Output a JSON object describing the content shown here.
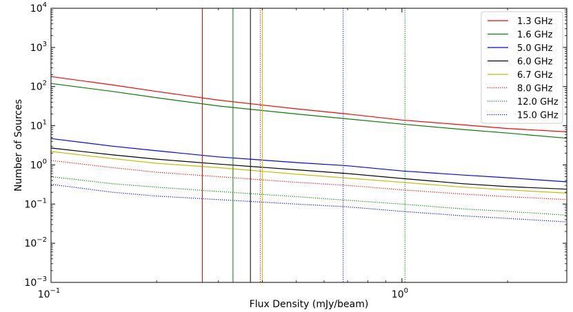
{
  "chart_data": {
    "type": "line",
    "title": "",
    "xlabel": "Flux Density (mJy/beam)",
    "ylabel": "Number of Sources",
    "xscale": "log",
    "yscale": "log",
    "xlim": [
      0.1,
      2.95
    ],
    "ylim": [
      0.001,
      10000
    ],
    "grid": false,
    "legend_position": "top-right",
    "x_ticks": [
      {
        "value": 0.1,
        "base": "10",
        "exp": "−1"
      },
      {
        "value": 1,
        "base": "10",
        "exp": "0"
      }
    ],
    "y_ticks": [
      {
        "value": 0.001,
        "base": "10",
        "exp": "−3"
      },
      {
        "value": 0.01,
        "base": "10",
        "exp": "−2"
      },
      {
        "value": 0.1,
        "base": "10",
        "exp": "−1"
      },
      {
        "value": 1,
        "base": "10",
        "exp": "0"
      },
      {
        "value": 10,
        "base": "10",
        "exp": "1"
      },
      {
        "value": 100,
        "base": "10",
        "exp": "2"
      },
      {
        "value": 1000,
        "base": "10",
        "exp": "3"
      },
      {
        "value": 10000,
        "base": "10",
        "exp": "4"
      }
    ],
    "series": [
      {
        "name": "1.3 GHz",
        "color": "#ff0000",
        "style": "solid",
        "threshold_x": 0.27,
        "x": [
          0.1,
          0.15,
          0.2,
          0.3,
          0.5,
          0.7,
          1.0,
          1.5,
          2.0,
          2.95
        ],
        "y": [
          180,
          110,
          75,
          45,
          27,
          20,
          14,
          10.5,
          8.5,
          7
        ]
      },
      {
        "name": "1.6 GHz",
        "color": "#008000",
        "style": "solid",
        "threshold_x": 0.33,
        "x": [
          0.1,
          0.15,
          0.2,
          0.3,
          0.5,
          0.7,
          1.0,
          1.5,
          2.0,
          2.95
        ],
        "y": [
          120,
          75,
          52,
          32,
          20,
          15,
          11,
          8,
          6.5,
          4.8
        ]
      },
      {
        "name": "5.0 GHz",
        "color": "#0000ff",
        "style": "solid",
        "threshold_x": null,
        "x": [
          0.1,
          0.15,
          0.2,
          0.3,
          0.5,
          0.7,
          1.0,
          1.5,
          2.0,
          2.95
        ],
        "y": [
          4.7,
          3.0,
          2.3,
          1.6,
          1.15,
          0.95,
          0.7,
          0.55,
          0.47,
          0.37
        ]
      },
      {
        "name": "6.0 GHz",
        "color": "#000000",
        "style": "solid",
        "threshold_x": 0.37,
        "x": [
          0.1,
          0.15,
          0.2,
          0.3,
          0.5,
          0.7,
          1.0,
          1.5,
          2.0,
          2.95
        ],
        "y": [
          2.7,
          1.8,
          1.4,
          1.05,
          0.75,
          0.6,
          0.45,
          0.33,
          0.28,
          0.24
        ]
      },
      {
        "name": "6.7 GHz",
        "color": "#bfbf00",
        "style": "solid",
        "threshold_x": 0.4,
        "x": [
          0.1,
          0.15,
          0.2,
          0.3,
          0.5,
          0.7,
          1.0,
          1.5,
          2.0,
          2.95
        ],
        "y": [
          2.2,
          1.45,
          1.1,
          0.85,
          0.58,
          0.46,
          0.36,
          0.27,
          0.23,
          0.19
        ]
      },
      {
        "name": "8.0 GHz",
        "color": "#ff0000",
        "style": "dotted",
        "threshold_x": 0.395,
        "x": [
          0.1,
          0.15,
          0.2,
          0.3,
          0.5,
          0.7,
          1.0,
          1.5,
          2.0,
          2.95
        ],
        "y": [
          1.3,
          0.85,
          0.65,
          0.5,
          0.36,
          0.3,
          0.23,
          0.18,
          0.155,
          0.13
        ]
      },
      {
        "name": "12.0 GHz",
        "color": "#008000",
        "style": "dotted",
        "threshold_x": 1.02,
        "x": [
          0.1,
          0.15,
          0.2,
          0.3,
          0.5,
          0.7,
          1.0,
          1.5,
          2.0,
          2.95
        ],
        "y": [
          0.5,
          0.33,
          0.27,
          0.21,
          0.155,
          0.125,
          0.1,
          0.075,
          0.065,
          0.052
        ]
      },
      {
        "name": "15.0 GHz",
        "color": "#0000ff",
        "style": "dotted",
        "threshold_x": 0.68,
        "x": [
          0.1,
          0.15,
          0.2,
          0.3,
          0.5,
          0.7,
          1.0,
          1.5,
          2.0,
          2.95
        ],
        "y": [
          0.32,
          0.2,
          0.16,
          0.13,
          0.1,
          0.085,
          0.065,
          0.05,
          0.043,
          0.035
        ]
      }
    ]
  }
}
